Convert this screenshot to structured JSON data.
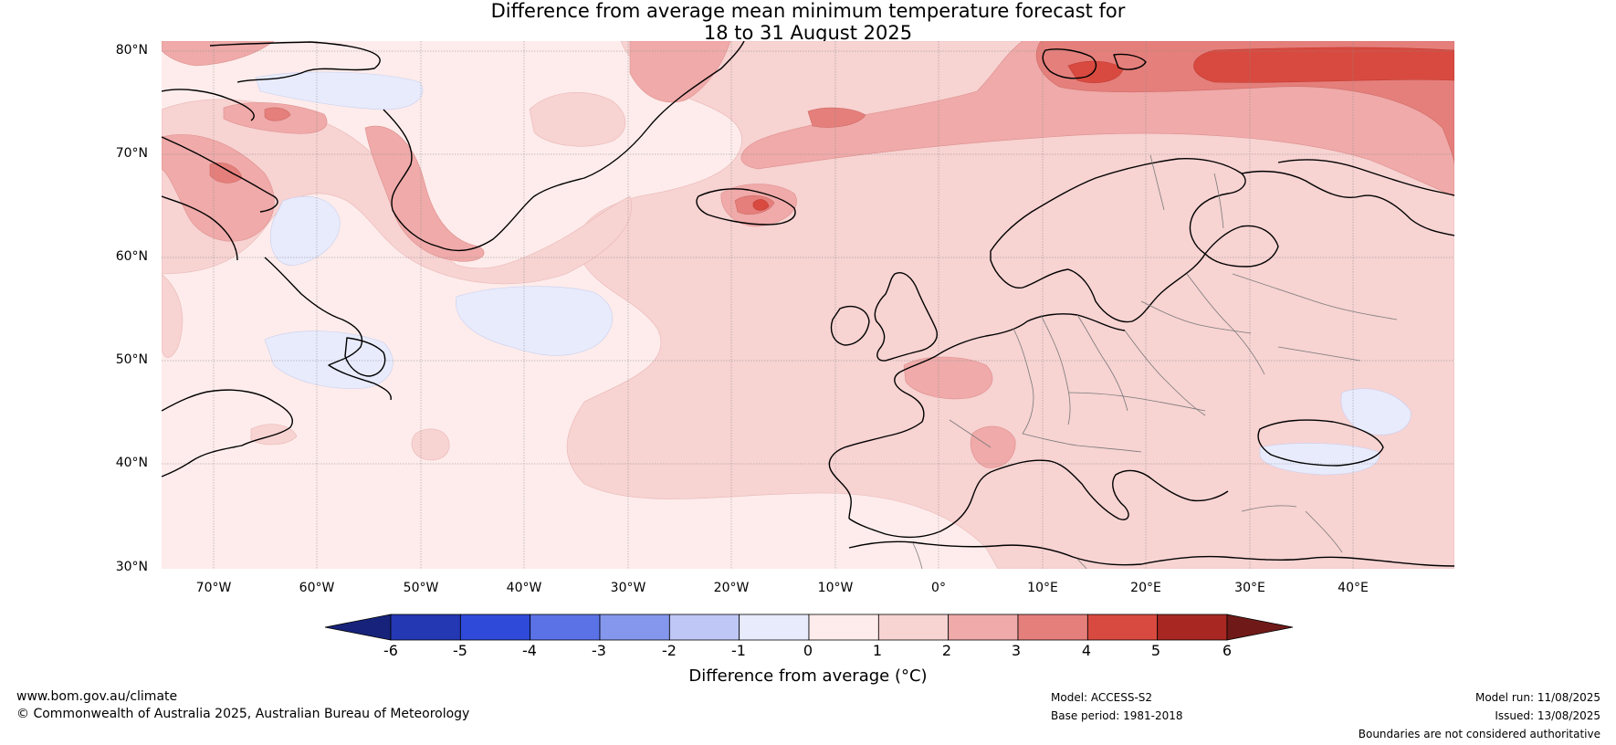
{
  "title": {
    "line1": "Difference from average mean minimum temperature forecast for",
    "line2": "18 to 31 August 2025"
  },
  "lat_labels": [
    "80°N",
    "70°N",
    "60°N",
    "50°N",
    "40°N",
    "30°N"
  ],
  "lon_labels": [
    "70°W",
    "60°W",
    "50°W",
    "40°W",
    "30°W",
    "20°W",
    "10°W",
    "0°",
    "10°E",
    "20°E",
    "30°E",
    "40°E"
  ],
  "colorbar": {
    "ticks": [
      "-6",
      "-5",
      "-4",
      "-3",
      "-2",
      "-1",
      "0",
      "1",
      "2",
      "3",
      "4",
      "5",
      "6"
    ],
    "label": "Difference from average (°C)",
    "colors": [
      "#17237a",
      "#2438b4",
      "#2f4ad9",
      "#5a72e6",
      "#8497ed",
      "#bec7f5",
      "#e8ebfc",
      "#fdeceb",
      "#f7d3d2",
      "#efaaa9",
      "#e57f7b",
      "#d84a40",
      "#a82722",
      "#6f1a18"
    ]
  },
  "footer": {
    "website": "www.bom.gov.au/climate",
    "copyright": "© Commonwealth of Australia 2025, Australian Bureau of Meteorology",
    "model": "Model: ACCESS-S2",
    "base_period": "Base period: 1981-2018",
    "model_run": "Model run: 11/08/2025",
    "issued": "Issued: 13/08/2025",
    "disclaimer": "Boundaries are not considered authoritative"
  }
}
